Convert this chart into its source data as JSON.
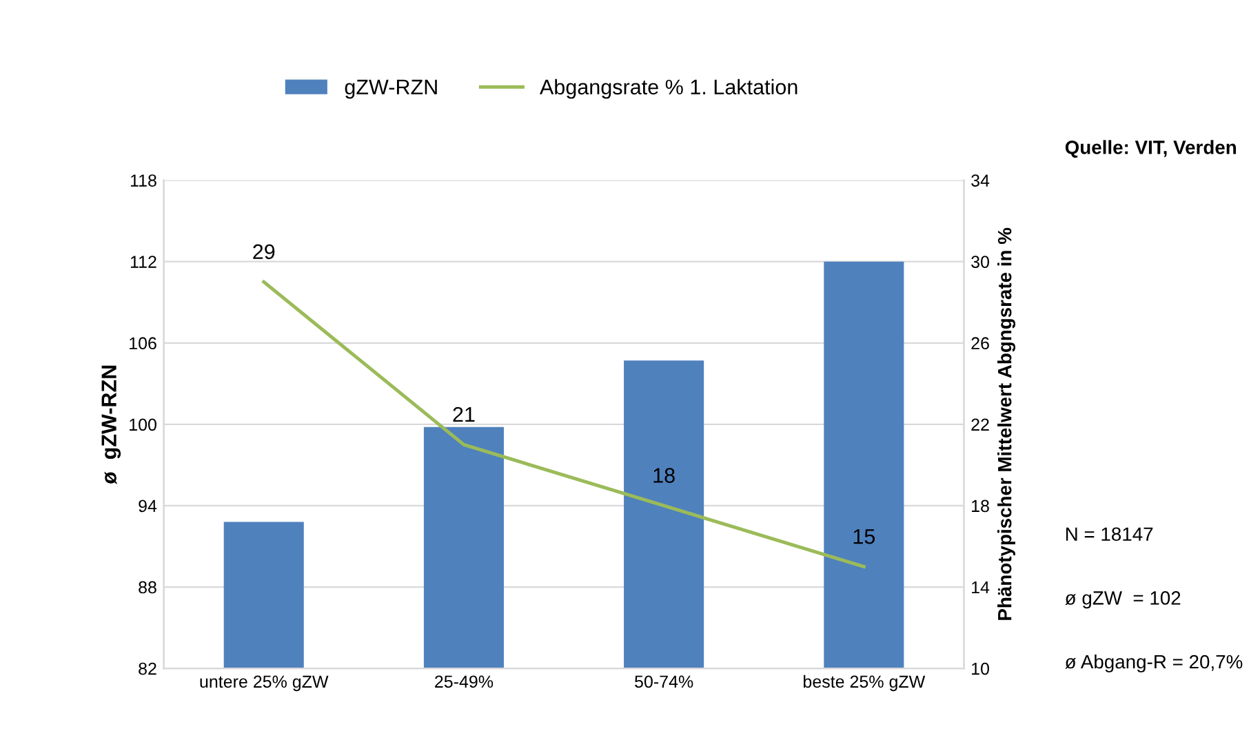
{
  "chart_data": {
    "type": "bar",
    "categories": [
      "untere 25% gZW",
      "25-49%",
      "50-74%",
      "beste 25% gZW"
    ],
    "series": [
      {
        "name": "gZW-RZN",
        "color": "#4f81bd",
        "values": [
          92.8,
          99.8,
          104.7,
          112.0
        ]
      },
      {
        "name": "Abgangsrate % 1. Laktation",
        "type": "line",
        "axis": "y2",
        "color": "#9bbb59",
        "values": [
          29,
          21,
          18,
          15
        ],
        "data_labels": true
      }
    ],
    "ylabel": "ø  gZW-RZN",
    "y2label": "Phänotypischer Mittelwert Abgngsrate in %",
    "ylim": [
      82,
      118
    ],
    "yticks": [
      82,
      88,
      94,
      100,
      106,
      112,
      118
    ],
    "y2lim": [
      10,
      34
    ],
    "y2ticks": [
      10,
      14,
      18,
      22,
      26,
      30,
      34
    ],
    "grid": "y",
    "legend": "top",
    "marker": "none",
    "annotations": [
      "Quelle: VIT, Verden",
      "N = 18147",
      "ø gZW  = 102",
      "ø Abgang-R = 20,7%"
    ]
  }
}
